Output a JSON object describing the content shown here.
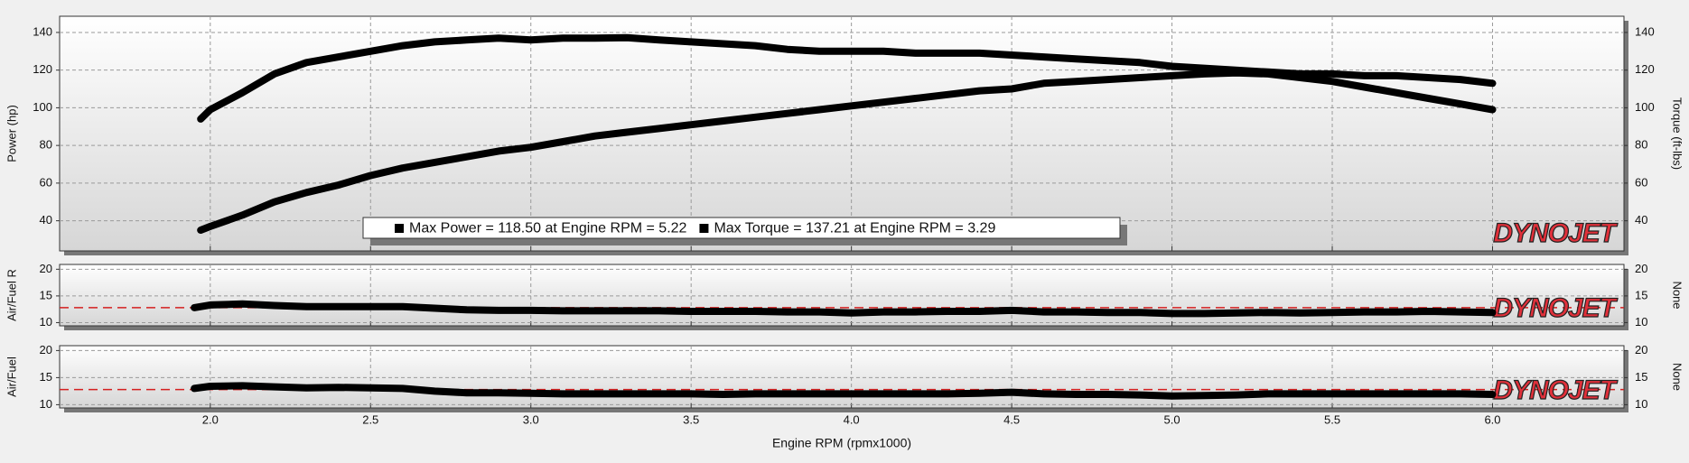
{
  "chart_data": [
    {
      "type": "line",
      "ylabel": "Power (hp)",
      "y2label": "Torque (ft-lbs)",
      "watermark": "DYNOJET",
      "legend_text": [
        "Max Power = 118.50 at Engine RPM = 5.22",
        "Max Torque = 137.21 at Engine RPM = 3.29"
      ],
      "xlim": [
        1.53,
        6.41
      ],
      "ylim": [
        24,
        148.6
      ],
      "yticks": [
        40,
        60,
        80,
        100,
        120,
        140
      ],
      "y2lim": [
        24,
        148.6
      ],
      "y2ticks": [
        40,
        60,
        80,
        100,
        120,
        140
      ],
      "grid": true,
      "x": [
        1.97,
        2.0,
        2.1,
        2.2,
        2.3,
        2.4,
        2.5,
        2.6,
        2.7,
        2.8,
        2.9,
        3.0,
        3.1,
        3.2,
        3.3,
        3.4,
        3.5,
        3.6,
        3.7,
        3.8,
        3.9,
        4.0,
        4.1,
        4.2,
        4.3,
        4.4,
        4.5,
        4.6,
        4.7,
        4.8,
        4.9,
        5.0,
        5.1,
        5.2,
        5.3,
        5.4,
        5.5,
        5.6,
        5.7,
        5.8,
        5.9,
        6.0
      ],
      "series": [
        {
          "name": "Power",
          "color": "#000000",
          "values": [
            35,
            37,
            43,
            50,
            55,
            59,
            64,
            68,
            71,
            74,
            77,
            79,
            82,
            85,
            87,
            89,
            91,
            93,
            95,
            97,
            99,
            101,
            103,
            105,
            107,
            109,
            110,
            113,
            114,
            115,
            116,
            117,
            118,
            118.5,
            118,
            116,
            114,
            111,
            108,
            105,
            102,
            99
          ]
        },
        {
          "name": "Torque",
          "color": "#000000",
          "axis": "y2",
          "values": [
            94,
            99,
            108,
            118,
            124,
            127,
            130,
            133,
            135,
            136,
            137,
            136,
            137,
            137,
            137.2,
            136,
            135,
            134,
            133,
            131,
            130,
            130,
            130,
            129,
            129,
            129,
            128,
            127,
            126,
            125,
            124,
            122,
            121,
            120,
            119,
            118,
            118,
            117,
            117,
            116,
            115,
            113
          ]
        }
      ]
    },
    {
      "type": "line",
      "ylabel": "Air/Fuel R",
      "y2label": "None",
      "watermark": "DYNOJET",
      "xlim": [
        1.53,
        6.41
      ],
      "ylim": [
        9.4,
        20.9
      ],
      "yticks": [
        10,
        15,
        20
      ],
      "y2lim": [
        9.4,
        20.9
      ],
      "y2ticks": [
        10,
        15,
        20
      ],
      "grid": true,
      "reference_line": {
        "value": 12.8,
        "color": "#d42020"
      },
      "x": [
        1.95,
        2.0,
        2.1,
        2.2,
        2.3,
        2.4,
        2.5,
        2.6,
        2.7,
        2.8,
        2.9,
        3.0,
        3.1,
        3.2,
        3.3,
        3.4,
        3.5,
        3.6,
        3.7,
        3.8,
        3.9,
        4.0,
        4.1,
        4.2,
        4.3,
        4.4,
        4.5,
        4.6,
        4.7,
        4.8,
        4.9,
        5.0,
        5.1,
        5.2,
        5.3,
        5.4,
        5.5,
        5.6,
        5.7,
        5.8,
        5.9,
        6.0
      ],
      "series": [
        {
          "name": "Air/Fuel R",
          "color": "#000000",
          "values": [
            12.8,
            13.3,
            13.5,
            13.2,
            13.0,
            13.0,
            13.0,
            13.0,
            12.7,
            12.4,
            12.3,
            12.3,
            12.2,
            12.2,
            12.2,
            12.2,
            12.1,
            12.1,
            12.1,
            12.0,
            12.0,
            11.8,
            12.0,
            12.0,
            12.1,
            12.1,
            12.3,
            12.0,
            12.0,
            11.9,
            11.9,
            11.7,
            11.7,
            11.8,
            11.9,
            11.8,
            11.9,
            12.0,
            12.0,
            12.1,
            12.0,
            11.9
          ]
        }
      ]
    },
    {
      "type": "line",
      "ylabel": "Air/Fuel",
      "y2label": "None",
      "watermark": "DYNOJET",
      "xlabel": "Engine RPM (rpmx1000)",
      "xlim": [
        1.53,
        6.41
      ],
      "xticks": [
        {
          "value": 2,
          "label": "2.0"
        },
        2.5,
        {
          "value": 3,
          "label": "3.0"
        },
        3.5,
        {
          "value": 4,
          "label": "4.0"
        },
        4.5,
        {
          "value": 5,
          "label": "5.0"
        },
        5.5,
        {
          "value": 6,
          "label": "6.0"
        }
      ],
      "ylim": [
        9.4,
        20.9
      ],
      "yticks": [
        10,
        15,
        20
      ],
      "y2lim": [
        9.4,
        20.9
      ],
      "y2ticks": [
        10,
        15,
        20
      ],
      "grid": true,
      "reference_line": {
        "value": 12.8,
        "color": "#d42020"
      },
      "x": [
        1.95,
        2.0,
        2.1,
        2.2,
        2.3,
        2.4,
        2.5,
        2.6,
        2.7,
        2.8,
        2.9,
        3.0,
        3.1,
        3.2,
        3.3,
        3.4,
        3.5,
        3.6,
        3.7,
        3.8,
        3.9,
        4.0,
        4.1,
        4.2,
        4.3,
        4.4,
        4.5,
        4.6,
        4.7,
        4.8,
        4.9,
        5.0,
        5.1,
        5.2,
        5.3,
        5.4,
        5.5,
        5.6,
        5.7,
        5.8,
        5.9,
        6.0
      ],
      "series": [
        {
          "name": "Air/Fuel",
          "color": "#000000",
          "values": [
            13.0,
            13.4,
            13.5,
            13.3,
            13.1,
            13.2,
            13.1,
            13.0,
            12.5,
            12.2,
            12.2,
            12.1,
            12.0,
            12.0,
            12.0,
            12.0,
            12.0,
            11.9,
            12.0,
            12.0,
            12.0,
            12.0,
            12.0,
            12.0,
            12.0,
            12.1,
            12.3,
            12.0,
            11.9,
            11.9,
            11.8,
            11.6,
            11.7,
            11.8,
            12.0,
            12.0,
            12.0,
            12.0,
            12.0,
            12.0,
            12.0,
            11.9
          ]
        }
      ]
    }
  ]
}
